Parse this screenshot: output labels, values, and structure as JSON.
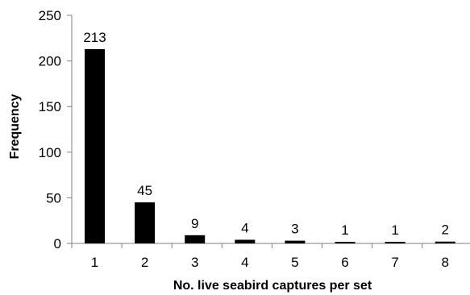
{
  "chart_data": {
    "type": "bar",
    "categories": [
      "1",
      "2",
      "3",
      "4",
      "5",
      "6",
      "7",
      "8"
    ],
    "values": [
      213,
      45,
      9,
      4,
      3,
      1,
      1,
      2
    ],
    "data_labels": [
      "213",
      "45",
      "9",
      "4",
      "3",
      "1",
      "1",
      "2"
    ],
    "xlabel": "No. live seabird captures per set",
    "ylabel": "Frequency",
    "ylim": [
      0,
      250
    ],
    "yticks": [
      0,
      50,
      100,
      150,
      200,
      250
    ],
    "grid": false,
    "legend": "none",
    "bar_color": "#000000",
    "axis_color": "#808080"
  }
}
